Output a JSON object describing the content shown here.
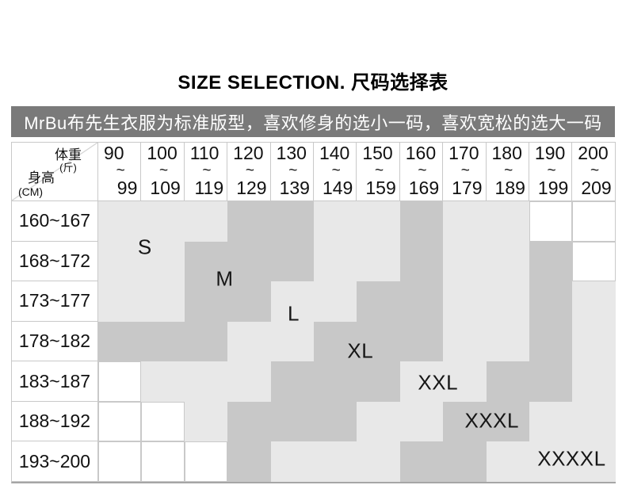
{
  "chart_data": {
    "type": "table",
    "title": "SIZE SELECTION. 尺码选择表",
    "note": "MrBu布先生衣服为标准版型，喜欢修身的选小一码，喜欢宽松的选大一码",
    "col_header": {
      "label": "体重",
      "unit": "(斤)"
    },
    "row_header": {
      "label": "身高",
      "unit": "(CM)"
    },
    "range_separator": "~",
    "weight_ranges_jin": [
      {
        "from": "90",
        "to": "99"
      },
      {
        "from": "100",
        "to": "109"
      },
      {
        "from": "110",
        "to": "119"
      },
      {
        "from": "120",
        "to": "129"
      },
      {
        "from": "130",
        "to": "139"
      },
      {
        "from": "140",
        "to": "149"
      },
      {
        "from": "150",
        "to": "159"
      },
      {
        "from": "160",
        "to": "169"
      },
      {
        "from": "170",
        "to": "179"
      },
      {
        "from": "180",
        "to": "189"
      },
      {
        "from": "190",
        "to": "199"
      },
      {
        "from": "200",
        "to": "209"
      }
    ],
    "height_ranges_cm": [
      "160~167",
      "168~172",
      "173~177",
      "178~182",
      "183~187",
      "188~192",
      "193~200"
    ],
    "sizes": [
      "S",
      "M",
      "L",
      "XL",
      "XXL",
      "XXXL",
      "XXXXL"
    ],
    "cells": [
      [
        "S",
        "S",
        "S",
        "M",
        "M",
        "L",
        "L",
        "XL",
        "XXL",
        "XXL",
        "",
        ""
      ],
      [
        "S",
        "S",
        "M",
        "M",
        "M",
        "L",
        "L",
        "XL",
        "XXL",
        "XXL",
        "XXXL",
        ""
      ],
      [
        "S",
        "S",
        "M",
        "M",
        "L",
        "L",
        "XL",
        "XL",
        "XXL",
        "XXL",
        "XXXL",
        "XXXXL"
      ],
      [
        "M",
        "M",
        "M",
        "L",
        "L",
        "XL",
        "XL",
        "XL",
        "XXL",
        "XXL",
        "XXXL",
        "XXXXL"
      ],
      [
        "",
        "L",
        "L",
        "L",
        "XL",
        "XL",
        "XL",
        "XXL",
        "XXL",
        "XXXL",
        "XXXL",
        "XXXXL"
      ],
      [
        "",
        "",
        "L",
        "XL",
        "XL",
        "XL",
        "XXL",
        "XXL",
        "XXXL",
        "XXXL",
        "XXXXL",
        "XXXXL"
      ],
      [
        "",
        "",
        "",
        "XL",
        "XXL",
        "XXL",
        "XXL",
        "XXXL",
        "XXXL",
        "XXXXL",
        "XXXXL",
        "XXXXL"
      ]
    ]
  },
  "colors": {
    "light": "#e8e8e8",
    "dark": "#c8c8c8",
    "banner_bg": "#7a7a7a",
    "banner_text": "#ffffff",
    "grid": "#c9c9c9",
    "bottom_line": "#a6a6a6",
    "text": "#111111"
  }
}
